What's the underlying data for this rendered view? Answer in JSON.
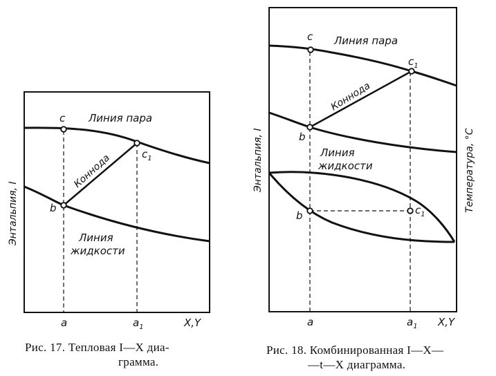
{
  "figure17": {
    "vapor_line_label": "Линия пара",
    "liquid_line_label_1": "Линия",
    "liquid_line_label_2": "жидкости",
    "tie_line_label": "Коннода",
    "y_axis_label": "Энтальпия, I",
    "x_axis_label": "X,Y",
    "point_a": "a",
    "point_a1": "a",
    "point_a1_sub": "1",
    "point_b": "b",
    "point_c": "c",
    "point_c1": "c",
    "point_c1_sub": "1",
    "caption_line1": "Рис. 17. Тепловая I—X диа-",
    "caption_line2": "грамма."
  },
  "figure18": {
    "vapor_line_label": "Линия пара",
    "liquid_line_label_1": "Линия",
    "liquid_line_label_2": "жидкости",
    "tie_line_label": "Коннода",
    "y_axis_label": "Энтальпия, I",
    "right_axis_label": "Температура, °С",
    "x_axis_label": "X,Y",
    "point_a": "a",
    "point_a1": "a",
    "point_a1_sub": "1",
    "point_b_top": "b",
    "point_c_top": "c",
    "point_c1_top": "c",
    "point_c1_sub": "1",
    "point_b_bottom": "b",
    "point_c1_bottom": "c",
    "point_c1_bottom_sub": "1",
    "caption_line1": "Рис. 18. Комбинированная I—X—",
    "caption_line2": "—t—X диаграмма."
  }
}
